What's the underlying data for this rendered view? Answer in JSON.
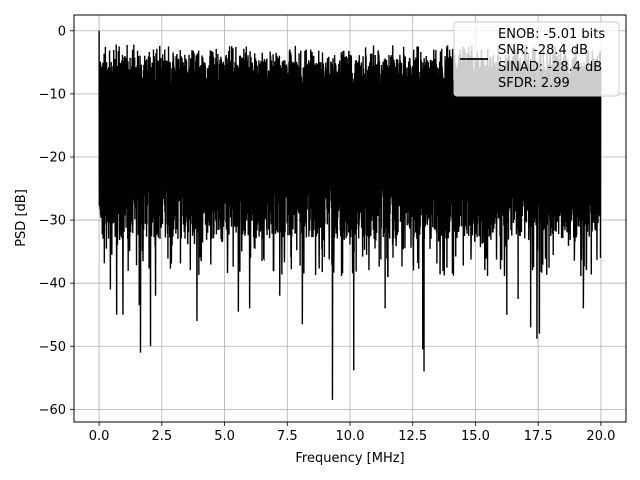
{
  "chart_data": {
    "type": "line",
    "title": "",
    "xlabel": "Frequency [MHz]",
    "ylabel": "PSD [dB]",
    "xlim": [
      -1.0,
      21.0
    ],
    "ylim": [
      -62,
      2.5
    ],
    "x_ticks": [
      0.0,
      2.5,
      5.0,
      7.5,
      10.0,
      12.5,
      15.0,
      17.5,
      20.0
    ],
    "x_tick_labels": [
      "0.0",
      "2.5",
      "5.0",
      "7.5",
      "10.0",
      "12.5",
      "15.0",
      "17.5",
      "20.0"
    ],
    "y_ticks": [
      0,
      -10,
      -20,
      -30,
      -40,
      -50,
      -60
    ],
    "y_tick_labels": [
      "0",
      "−10",
      "−20",
      "−30",
      "−40",
      "−50",
      "−60"
    ],
    "grid": true,
    "legend": {
      "placement": "top-right",
      "entries": [
        "ENOB: -5.01 bits",
        "SNR: -28.4 dB",
        "SINAD: -28.4 dB",
        "SFDR: 2.99"
      ]
    },
    "series": [
      {
        "color": "#000000",
        "x_range": [
          0.0,
          20.0
        ],
        "peak": {
          "x": 0.0,
          "y": 0.0
        },
        "typical_top": -6,
        "typical_bottom": -33,
        "notable_minima": [
          {
            "x": 0.45,
            "y": -41
          },
          {
            "x": 0.7,
            "y": -45
          },
          {
            "x": 0.95,
            "y": -45
          },
          {
            "x": 1.6,
            "y": -43.5
          },
          {
            "x": 1.65,
            "y": -51
          },
          {
            "x": 2.05,
            "y": -50
          },
          {
            "x": 2.25,
            "y": -42
          },
          {
            "x": 3.9,
            "y": -46
          },
          {
            "x": 5.55,
            "y": -44.5
          },
          {
            "x": 6.0,
            "y": -44
          },
          {
            "x": 7.2,
            "y": -42
          },
          {
            "x": 8.1,
            "y": -46.5
          },
          {
            "x": 9.3,
            "y": -58.5
          },
          {
            "x": 10.15,
            "y": -53.8
          },
          {
            "x": 11.4,
            "y": -44
          },
          {
            "x": 12.9,
            "y": -50.5
          },
          {
            "x": 12.95,
            "y": -54
          },
          {
            "x": 16.25,
            "y": -45
          },
          {
            "x": 16.7,
            "y": -42.5
          },
          {
            "x": 17.2,
            "y": -47
          },
          {
            "x": 17.45,
            "y": -48.8
          },
          {
            "x": 17.55,
            "y": -48
          },
          {
            "x": 19.3,
            "y": -44
          }
        ]
      }
    ]
  }
}
